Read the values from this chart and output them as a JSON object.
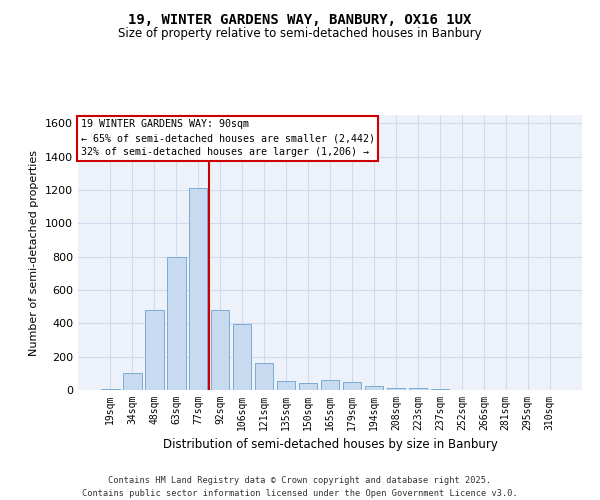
{
  "title_line1": "19, WINTER GARDENS WAY, BANBURY, OX16 1UX",
  "title_line2": "Size of property relative to semi-detached houses in Banbury",
  "xlabel": "Distribution of semi-detached houses by size in Banbury",
  "ylabel": "Number of semi-detached properties",
  "categories": [
    "19sqm",
    "34sqm",
    "48sqm",
    "63sqm",
    "77sqm",
    "92sqm",
    "106sqm",
    "121sqm",
    "135sqm",
    "150sqm",
    "165sqm",
    "179sqm",
    "194sqm",
    "208sqm",
    "223sqm",
    "237sqm",
    "252sqm",
    "266sqm",
    "281sqm",
    "295sqm",
    "310sqm"
  ],
  "values": [
    5,
    100,
    480,
    800,
    1210,
    480,
    395,
    160,
    55,
    45,
    60,
    50,
    25,
    15,
    10,
    5,
    0,
    0,
    0,
    0,
    0
  ],
  "bar_color": "#c8daf0",
  "bar_edge_color": "#7aadd4",
  "vline_color": "#cc0000",
  "vline_pos": 4.5,
  "ylim": [
    0,
    1650
  ],
  "yticks": [
    0,
    200,
    400,
    600,
    800,
    1000,
    1200,
    1400,
    1600
  ],
  "annotation_title": "19 WINTER GARDENS WAY: 90sqm",
  "annotation_line1": "← 65% of semi-detached houses are smaller (2,442)",
  "annotation_line2": "32% of semi-detached houses are larger (1,206) →",
  "annotation_box_facecolor": "#ffffff",
  "annotation_border_color": "#cc0000",
  "footer_line1": "Contains HM Land Registry data © Crown copyright and database right 2025.",
  "footer_line2": "Contains public sector information licensed under the Open Government Licence v3.0.",
  "grid_color": "#d0daec",
  "background_color": "#edf2fa"
}
